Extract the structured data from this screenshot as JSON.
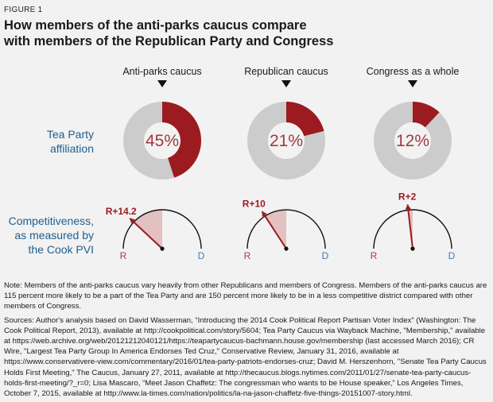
{
  "figure_label": "FIGURE 1",
  "title_lines": [
    "How members of the anti-parks caucus compare",
    "with members of the Republican Party and Congress"
  ],
  "colors": {
    "accent_red": "#9b1b20",
    "light_red": "#e3c1c0",
    "gray": "#cccccc",
    "label_blue": "#1f5e8c",
    "d_blue": "#4a7aab",
    "r_red": "#b03a3f",
    "background": "#f2f2f2"
  },
  "chart_data": [
    {
      "type": "pie",
      "title": "Tea Party affiliation",
      "row_label_lines": [
        "Tea Party",
        "affiliation"
      ],
      "categories": [
        "Anti-parks caucus",
        "Republican caucus",
        "Congress as a whole"
      ],
      "values": [
        45,
        21,
        12
      ],
      "value_labels": [
        "45%",
        "21%",
        "12%"
      ],
      "unit": "percent",
      "style": "donut"
    },
    {
      "type": "gauge",
      "title": "Competitiveness, as measured by the Cook PVI",
      "row_label_lines": [
        "Competitiveness,",
        "as measured by",
        "the Cook PVI"
      ],
      "categories": [
        "Anti-parks caucus",
        "Republican caucus",
        "Congress as a whole"
      ],
      "values": [
        14.2,
        10,
        2
      ],
      "value_labels": [
        "R+14.2",
        "R+10",
        "R+2"
      ],
      "left_label": "R",
      "right_label": "D"
    }
  ],
  "notes": {
    "note": "Note: Members of the anti-parks caucus vary heavily from other Republicans and members of Congress. Members of the anti-parks caucus are 115 percent more likely to be a part of the Tea Party and are 150 percent more likely to be in a less competitive district compared with other members of Congress.",
    "sources": "Sources: Author's analysis based on David Wasserman, “Introducing the 2014 Cook Political Report Partisan Voter Index” (Washington: The Cook Political Report, 2013), available at http://cookpolitical.com/story/5604; Tea Party Caucus via Wayback Machine, \"Membership,\" available at https://web.archive.org/web/20121212040121/https://teapartycaucus-bachmann.house.gov/membership (last accessed March 2016); CR Wire, \"Largest Tea Party Group In America Endorses Ted Cruz,\" Conservative Review, January 31, 2016, available at https://www.conservativere-view.com/commentary/2016/01/tea-party-patriots-endorses-cruz; David M. Herszenhorn, \"Senate Tea Party Caucus Holds First Meeting,\" The Caucus, January 27, 2011, available at http://thecaucus.blogs.nytimes.com/2011/01/27/senate-tea-party-caucus-holds-first-meeting/?_r=0; Lisa Mascaro, “Meet Jason Chaffetz: The congressman who wants to be House speaker,” Los Angeles Times, October 7, 2015, available at http://www.la-times.com/nation/politics/la-na-jason-chaffetz-five-things-20151007-story.html."
  }
}
